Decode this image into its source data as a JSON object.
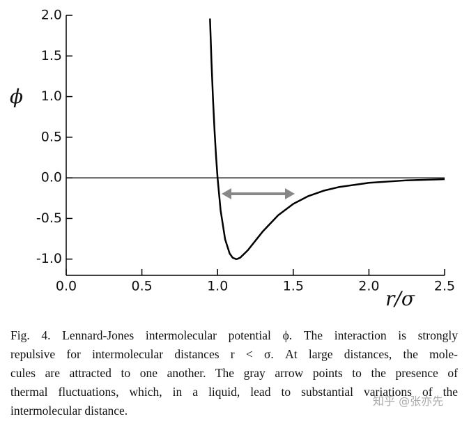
{
  "chart_data": {
    "type": "line",
    "x_label": "r/σ",
    "y_label": "ϕ",
    "x": [
      0.95,
      0.96,
      0.97,
      0.98,
      0.99,
      1.0,
      1.02,
      1.05,
      1.08,
      1.1,
      1.122,
      1.13,
      1.15,
      1.2,
      1.25,
      1.3,
      1.4,
      1.5,
      1.6,
      1.7,
      1.8,
      2.0,
      2.25,
      2.5
    ],
    "values": [
      1.961,
      1.418,
      0.963,
      0.5819,
      0.2641,
      0,
      -0.3979,
      -0.7575,
      -0.9322,
      -0.9834,
      -1.0,
      -0.9985,
      -0.9817,
      -0.891,
      -0.7737,
      -0.657,
      -0.4607,
      -0.3203,
      -0.2242,
      -0.1589,
      -0.1141,
      -0.0615,
      -0.0306,
      -0.0163
    ],
    "color": "#000000",
    "xlim": [
      0,
      2.5
    ],
    "ylim": [
      -1.2,
      2.0
    ],
    "xticks": [
      {
        "value": 0,
        "label": "0.0"
      },
      0.5,
      {
        "value": 1,
        "label": "1.0"
      },
      1.5,
      {
        "value": 2,
        "label": "2.0"
      },
      2.5
    ],
    "yticks": [
      {
        "value": -1,
        "label": "-1.0"
      },
      -0.5,
      {
        "value": 0,
        "label": "0.0"
      },
      0.5,
      {
        "value": 1,
        "label": "1.0"
      },
      1.5,
      {
        "value": 2,
        "label": "2.0"
      }
    ],
    "zero_line": true,
    "caption": [
      "Fig. 4.  Lennard-Jones intermolecular potential ϕ. The interaction is strongly",
      "repulsive for intermolecular distances r < σ. At large distances, the mole-",
      "cules are attracted to one another. The gray arrow points to the presence of",
      "thermal fluctuations, which, in a liquid, lead to substantial variations of the",
      "intermolecular distance."
    ],
    "watermark": "知乎 @张亦先"
  }
}
